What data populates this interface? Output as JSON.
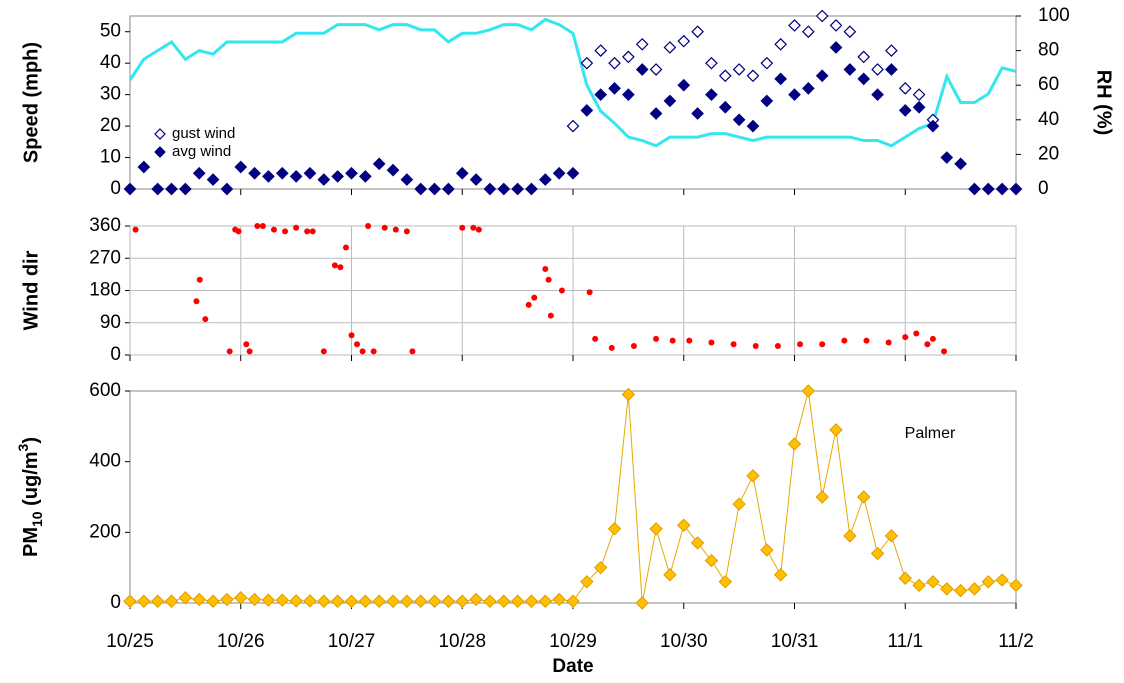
{
  "chart_data": [
    {
      "type": "scatter",
      "ylabel": "Speed (mph)",
      "y2label": "RH (%)",
      "legend": "upper left",
      "x": [
        0,
        0.125,
        0.25,
        0.375,
        0.5,
        0.625,
        0.75,
        0.875,
        1,
        1.125,
        1.25,
        1.375,
        1.5,
        1.625,
        1.75,
        1.875,
        2,
        2.125,
        2.25,
        2.375,
        2.5,
        2.625,
        2.75,
        2.875,
        3,
        3.125,
        3.25,
        3.375,
        3.5,
        3.625,
        3.75,
        3.875,
        4,
        4.125,
        4.25,
        4.375,
        4.5,
        4.625,
        4.75,
        4.875,
        5,
        5.125,
        5.25,
        5.375,
        5.5,
        5.625,
        5.75,
        5.875,
        6,
        6.125,
        6.25,
        6.375,
        6.5,
        6.625,
        6.75,
        6.875,
        7,
        7.125,
        7.25,
        7.375,
        7.5,
        7.625,
        7.75,
        7.875,
        8
      ],
      "xlim": [
        0,
        8
      ],
      "xticks": [
        0,
        1,
        2,
        3,
        4,
        5,
        6,
        7,
        8
      ],
      "ylim": [
        0,
        55
      ],
      "yticks": [
        0,
        10,
        20,
        30,
        40,
        50
      ],
      "y2lim": [
        0,
        100
      ],
      "y2ticks": [
        0,
        20,
        40,
        60,
        80,
        100
      ],
      "series": [
        {
          "marker": "line",
          "color": "#33e6f0",
          "axis": "y2",
          "values": [
            63,
            75,
            80,
            85,
            75,
            80,
            78,
            85,
            85,
            85,
            85,
            85,
            90,
            90,
            90,
            95,
            95,
            95,
            92,
            95,
            95,
            92,
            92,
            85,
            90,
            90,
            92,
            95,
            95,
            92,
            98,
            95,
            90,
            60,
            45,
            38,
            30,
            28,
            25,
            30,
            30,
            30,
            32,
            32,
            30,
            28,
            30,
            30,
            30,
            30,
            30,
            30,
            30,
            28,
            28,
            25,
            30,
            35,
            38,
            65,
            50,
            50,
            55,
            70,
            68
          ]
        },
        {
          "name": "gust wind",
          "marker": "open-diamond",
          "color": "#000080",
          "values": [
            null,
            null,
            null,
            null,
            null,
            null,
            null,
            null,
            null,
            null,
            null,
            null,
            null,
            null,
            null,
            null,
            null,
            null,
            null,
            null,
            null,
            null,
            null,
            null,
            null,
            null,
            null,
            null,
            null,
            null,
            null,
            null,
            20,
            40,
            44,
            40,
            42,
            46,
            38,
            45,
            47,
            50,
            40,
            36,
            38,
            36,
            40,
            46,
            52,
            50,
            55,
            52,
            50,
            42,
            38,
            44,
            32,
            30,
            22,
            null,
            null,
            null,
            null,
            null,
            null
          ]
        },
        {
          "name": "avg wind",
          "marker": "diamond",
          "color": "#000080",
          "values": [
            0,
            7,
            0,
            0,
            0,
            5,
            3,
            0,
            7,
            5,
            4,
            5,
            4,
            5,
            3,
            4,
            5,
            4,
            8,
            6,
            3,
            0,
            0,
            0,
            5,
            3,
            0,
            0,
            0,
            0,
            3,
            5,
            5,
            25,
            30,
            32,
            30,
            38,
            24,
            28,
            33,
            24,
            30,
            26,
            22,
            20,
            28,
            35,
            30,
            32,
            36,
            45,
            38,
            35,
            30,
            38,
            25,
            26,
            20,
            10,
            8,
            0,
            0,
            0,
            0
          ]
        }
      ]
    },
    {
      "type": "scatter",
      "ylabel": "Wind dir",
      "color": "#ff0000",
      "grid": true,
      "x": [
        0.05,
        0.6,
        0.63,
        0.68,
        0.9,
        0.95,
        0.98,
        1.05,
        1.08,
        1.15,
        1.2,
        1.3,
        1.4,
        1.5,
        1.6,
        1.65,
        1.75,
        1.85,
        1.9,
        1.95,
        2.0,
        2.05,
        2.1,
        2.15,
        2.2,
        2.3,
        2.4,
        2.5,
        2.55,
        3.0,
        3.1,
        3.15,
        3.6,
        3.65,
        3.75,
        3.78,
        3.8,
        3.9,
        4.15,
        4.2,
        4.35,
        4.55,
        4.75,
        4.9,
        5.05,
        5.25,
        5.45,
        5.65,
        5.85,
        6.05,
        6.25,
        6.45,
        6.65,
        6.85,
        7.0,
        7.1,
        7.2,
        7.25,
        7.35
      ],
      "values": [
        350,
        150,
        210,
        100,
        10,
        350,
        345,
        30,
        10,
        360,
        360,
        350,
        345,
        355,
        345,
        345,
        10,
        250,
        245,
        300,
        55,
        30,
        10,
        360,
        10,
        355,
        350,
        345,
        10,
        355,
        355,
        350,
        140,
        160,
        240,
        210,
        110,
        180,
        175,
        45,
        20,
        25,
        45,
        40,
        40,
        35,
        30,
        25,
        25,
        30,
        30,
        40,
        40,
        35,
        50,
        60,
        30,
        45,
        10
      ],
      "xlim": [
        0,
        8
      ],
      "xticks": [
        0,
        1,
        2,
        3,
        4,
        5,
        6,
        7,
        8
      ],
      "ylim": [
        0,
        360
      ],
      "yticks": [
        0,
        90,
        180,
        270,
        360
      ]
    },
    {
      "type": "line",
      "ylabel": [
        "PM",
        "10",
        " (ug/m",
        "3",
        ")"
      ],
      "xlabel": "Date",
      "annotation": "Palmer",
      "color": "#ffc000",
      "x": [
        0,
        0.125,
        0.25,
        0.375,
        0.5,
        0.625,
        0.75,
        0.875,
        1,
        1.125,
        1.25,
        1.375,
        1.5,
        1.625,
        1.75,
        1.875,
        2,
        2.125,
        2.25,
        2.375,
        2.5,
        2.625,
        2.75,
        2.875,
        3,
        3.125,
        3.25,
        3.375,
        3.5,
        3.625,
        3.75,
        3.875,
        4,
        4.125,
        4.25,
        4.375,
        4.5,
        4.625,
        4.75,
        4.875,
        5,
        5.125,
        5.25,
        5.375,
        5.5,
        5.625,
        5.75,
        5.875,
        6,
        6.125,
        6.25,
        6.375,
        6.5,
        6.625,
        6.75,
        6.875,
        7,
        7.125,
        7.25,
        7.375,
        7.5,
        7.625,
        7.75,
        7.875,
        8
      ],
      "values": [
        5,
        5,
        5,
        5,
        15,
        10,
        5,
        10,
        15,
        10,
        8,
        8,
        6,
        6,
        5,
        5,
        5,
        5,
        5,
        5,
        5,
        5,
        5,
        5,
        5,
        10,
        5,
        5,
        5,
        5,
        5,
        10,
        5,
        60,
        100,
        210,
        590,
        0,
        210,
        80,
        220,
        170,
        120,
        60,
        280,
        360,
        150,
        80,
        450,
        600,
        300,
        490,
        190,
        300,
        140,
        190,
        70,
        50,
        60,
        40,
        35,
        40,
        60,
        65,
        50
      ],
      "xlim": [
        0,
        8
      ],
      "xticks": [
        {
          "value": 0,
          "label": "10/25"
        },
        {
          "value": 1,
          "label": "10/26"
        },
        {
          "value": 2,
          "label": "10/27"
        },
        {
          "value": 3,
          "label": "10/28"
        },
        {
          "value": 4,
          "label": "10/29"
        },
        {
          "value": 5,
          "label": "10/30"
        },
        {
          "value": 6,
          "label": "10/31"
        },
        {
          "value": 7,
          "label": "11/1"
        },
        {
          "value": 8,
          "label": "11/2"
        }
      ],
      "ylim": [
        0,
        600
      ],
      "yticks": [
        0,
        200,
        400,
        600
      ]
    }
  ]
}
